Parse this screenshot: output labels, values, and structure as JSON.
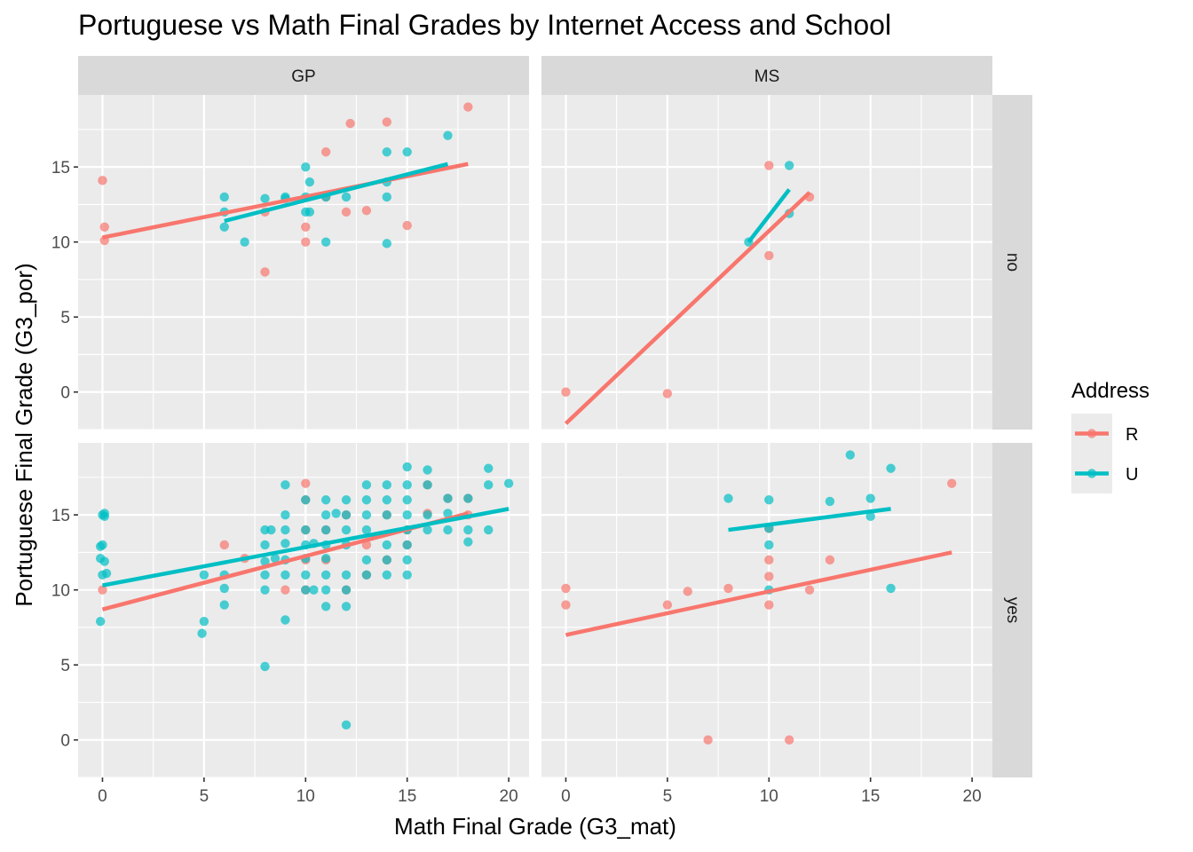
{
  "chart_data": {
    "type": "scatter",
    "title": "Portuguese vs Math Final Grades by Internet Access and School",
    "xlabel": "Math Final Grade (G3_mat)",
    "ylabel": "Portuguese Final Grade (G3_por)",
    "xlim": [
      -1.2,
      21
    ],
    "ylim": [
      -2.5,
      19.8
    ],
    "x_ticks": [
      0,
      5,
      10,
      15,
      20
    ],
    "y_ticks": [
      0,
      5,
      10,
      15
    ],
    "grid": true,
    "facet_cols": [
      "GP",
      "MS"
    ],
    "facet_rows": [
      "no",
      "yes"
    ],
    "legend": {
      "title": "Address",
      "placement": "right",
      "entries": [
        {
          "label": "R",
          "color": "#F8766D"
        },
        {
          "label": "U",
          "color": "#00BFC4"
        }
      ]
    },
    "colors": {
      "R": "#F8766D",
      "U": "#00BFC4"
    },
    "panels": [
      {
        "school": "GP",
        "internet": "no",
        "series": [
          {
            "address": "R",
            "points": [
              [
                0,
                14.1
              ],
              [
                0.1,
                11
              ],
              [
                0.1,
                10.1
              ],
              [
                8,
                8
              ],
              [
                8,
                12
              ],
              [
                10,
                11
              ],
              [
                10,
                10
              ],
              [
                11,
                16
              ],
              [
                11,
                13
              ],
              [
                12,
                12
              ],
              [
                12.2,
                17.9
              ],
              [
                13,
                12.1
              ],
              [
                14,
                18
              ],
              [
                15,
                11.1
              ],
              [
                18,
                19
              ]
            ],
            "fit": [
              [
                0,
                10.3
              ],
              [
                18,
                15.2
              ]
            ]
          },
          {
            "address": "U",
            "points": [
              [
                6,
                11
              ],
              [
                6,
                12
              ],
              [
                6,
                13
              ],
              [
                7,
                10
              ],
              [
                8,
                12.9
              ],
              [
                9,
                13
              ],
              [
                9,
                12.9
              ],
              [
                10,
                15
              ],
              [
                10,
                12
              ],
              [
                10,
                13
              ],
              [
                10.2,
                14
              ],
              [
                10.2,
                12
              ],
              [
                11,
                10
              ],
              [
                11,
                13
              ],
              [
                12,
                13
              ],
              [
                14,
                16
              ],
              [
                14,
                13
              ],
              [
                14,
                9.9
              ],
              [
                14,
                14
              ],
              [
                15,
                16
              ],
              [
                17,
                17.1
              ]
            ],
            "fit": [
              [
                6,
                11.4
              ],
              [
                17,
                15.2
              ]
            ]
          }
        ]
      },
      {
        "school": "MS",
        "internet": "no",
        "series": [
          {
            "address": "R",
            "points": [
              [
                0,
                0
              ],
              [
                5,
                -0.1
              ],
              [
                10,
                15.1
              ],
              [
                10,
                9.1
              ],
              [
                12,
                13
              ]
            ],
            "fit": [
              [
                0,
                -2.1
              ],
              [
                12,
                13.3
              ]
            ]
          },
          {
            "address": "U",
            "points": [
              [
                9,
                10
              ],
              [
                11,
                15.1
              ],
              [
                11,
                11.9
              ]
            ],
            "fit": [
              [
                9,
                10
              ],
              [
                11,
                13.5
              ]
            ]
          }
        ]
      },
      {
        "school": "GP",
        "internet": "yes",
        "series": [
          {
            "address": "R",
            "points": [
              [
                0,
                10
              ],
              [
                6,
                13
              ],
              [
                7,
                12.1
              ],
              [
                9,
                10
              ],
              [
                10,
                17.1
              ],
              [
                10,
                16
              ],
              [
                10,
                14
              ],
              [
                10,
                12
              ],
              [
                10,
                10
              ],
              [
                11,
                14
              ],
              [
                11,
                12
              ],
              [
                12,
                15
              ],
              [
                12,
                10
              ],
              [
                13,
                13
              ],
              [
                13,
                11
              ],
              [
                14,
                15
              ],
              [
                14,
                12
              ],
              [
                15,
                14
              ],
              [
                15,
                13
              ],
              [
                16,
                17
              ],
              [
                16,
                15.1
              ],
              [
                17,
                16.1
              ],
              [
                18,
                15
              ],
              [
                18,
                16.1
              ]
            ],
            "fit": [
              [
                0,
                8.7
              ],
              [
                18,
                15.1
              ]
            ]
          },
          {
            "address": "U",
            "points": [
              [
                -0.1,
                12.9
              ],
              [
                0,
                15
              ],
              [
                0.1,
                14.9
              ],
              [
                0,
                13
              ],
              [
                -0.1,
                12.1
              ],
              [
                0.1,
                11.9
              ],
              [
                0.2,
                11.1
              ],
              [
                -0.1,
                7.9
              ],
              [
                0.1,
                15.1
              ],
              [
                0,
                11
              ],
              [
                5,
                11
              ],
              [
                5,
                7.9
              ],
              [
                4.9,
                7.1
              ],
              [
                6,
                11
              ],
              [
                6,
                10.1
              ],
              [
                6,
                9
              ],
              [
                8,
                14
              ],
              [
                8,
                13
              ],
              [
                8,
                11.9
              ],
              [
                8,
                11
              ],
              [
                8,
                10
              ],
              [
                8,
                4.9
              ],
              [
                8.3,
                14
              ],
              [
                8.5,
                12.1
              ],
              [
                9,
                17
              ],
              [
                9,
                15
              ],
              [
                9,
                14
              ],
              [
                9,
                13.1
              ],
              [
                9,
                12
              ],
              [
                9,
                11
              ],
              [
                9,
                8
              ],
              [
                10,
                16
              ],
              [
                10,
                14
              ],
              [
                10,
                13
              ],
              [
                10,
                12.1
              ],
              [
                10,
                11
              ],
              [
                10,
                10
              ],
              [
                10.4,
                13.1
              ],
              [
                10.4,
                10
              ],
              [
                11,
                16
              ],
              [
                11,
                15
              ],
              [
                11,
                14
              ],
              [
                11,
                13
              ],
              [
                11,
                12.1
              ],
              [
                11,
                11
              ],
              [
                11,
                10
              ],
              [
                11,
                8.9
              ],
              [
                11.5,
                15.1
              ],
              [
                12,
                16
              ],
              [
                12,
                15
              ],
              [
                12,
                14
              ],
              [
                12,
                13
              ],
              [
                12,
                11
              ],
              [
                12,
                10
              ],
              [
                12,
                8.9
              ],
              [
                12,
                1
              ],
              [
                13,
                17
              ],
              [
                13,
                16
              ],
              [
                13,
                15
              ],
              [
                13,
                14
              ],
              [
                13,
                12
              ],
              [
                13,
                11
              ],
              [
                14,
                17
              ],
              [
                14,
                16
              ],
              [
                14,
                15
              ],
              [
                14,
                13
              ],
              [
                14,
                12
              ],
              [
                14,
                11
              ],
              [
                15,
                18.2
              ],
              [
                15,
                17
              ],
              [
                15,
                16
              ],
              [
                15,
                15
              ],
              [
                15,
                14
              ],
              [
                15,
                13
              ],
              [
                15,
                12
              ],
              [
                15,
                11
              ],
              [
                16,
                18
              ],
              [
                16,
                17
              ],
              [
                16,
                15
              ],
              [
                16,
                14
              ],
              [
                17,
                16.1
              ],
              [
                17,
                15.1
              ],
              [
                17,
                14
              ],
              [
                18,
                16.1
              ],
              [
                18,
                14
              ],
              [
                18,
                13.2
              ],
              [
                19,
                18.1
              ],
              [
                19,
                17
              ],
              [
                19,
                14
              ],
              [
                20,
                17.1
              ]
            ],
            "fit": [
              [
                0,
                10.3
              ],
              [
                20,
                15.4
              ]
            ]
          }
        ]
      },
      {
        "school": "MS",
        "internet": "yes",
        "series": [
          {
            "address": "R",
            "points": [
              [
                0,
                10.1
              ],
              [
                0,
                9
              ],
              [
                5,
                9
              ],
              [
                6,
                9.9
              ],
              [
                7,
                0
              ],
              [
                8,
                10.1
              ],
              [
                10,
                14.1
              ],
              [
                10,
                12
              ],
              [
                10,
                10.9
              ],
              [
                10,
                9
              ],
              [
                11,
                0
              ],
              [
                12,
                10
              ],
              [
                13,
                12
              ],
              [
                19,
                17.1
              ]
            ],
            "fit": [
              [
                0,
                7
              ],
              [
                19,
                12.5
              ]
            ]
          },
          {
            "address": "U",
            "points": [
              [
                8,
                16.1
              ],
              [
                10,
                16
              ],
              [
                10,
                14.1
              ],
              [
                10,
                13
              ],
              [
                10,
                10
              ],
              [
                13,
                15.9
              ],
              [
                14,
                19
              ],
              [
                15,
                16.1
              ],
              [
                15,
                14.9
              ],
              [
                16,
                18.1
              ],
              [
                16,
                10.1
              ]
            ],
            "fit": [
              [
                8,
                14
              ],
              [
                16,
                15.4
              ]
            ]
          }
        ]
      }
    ]
  }
}
